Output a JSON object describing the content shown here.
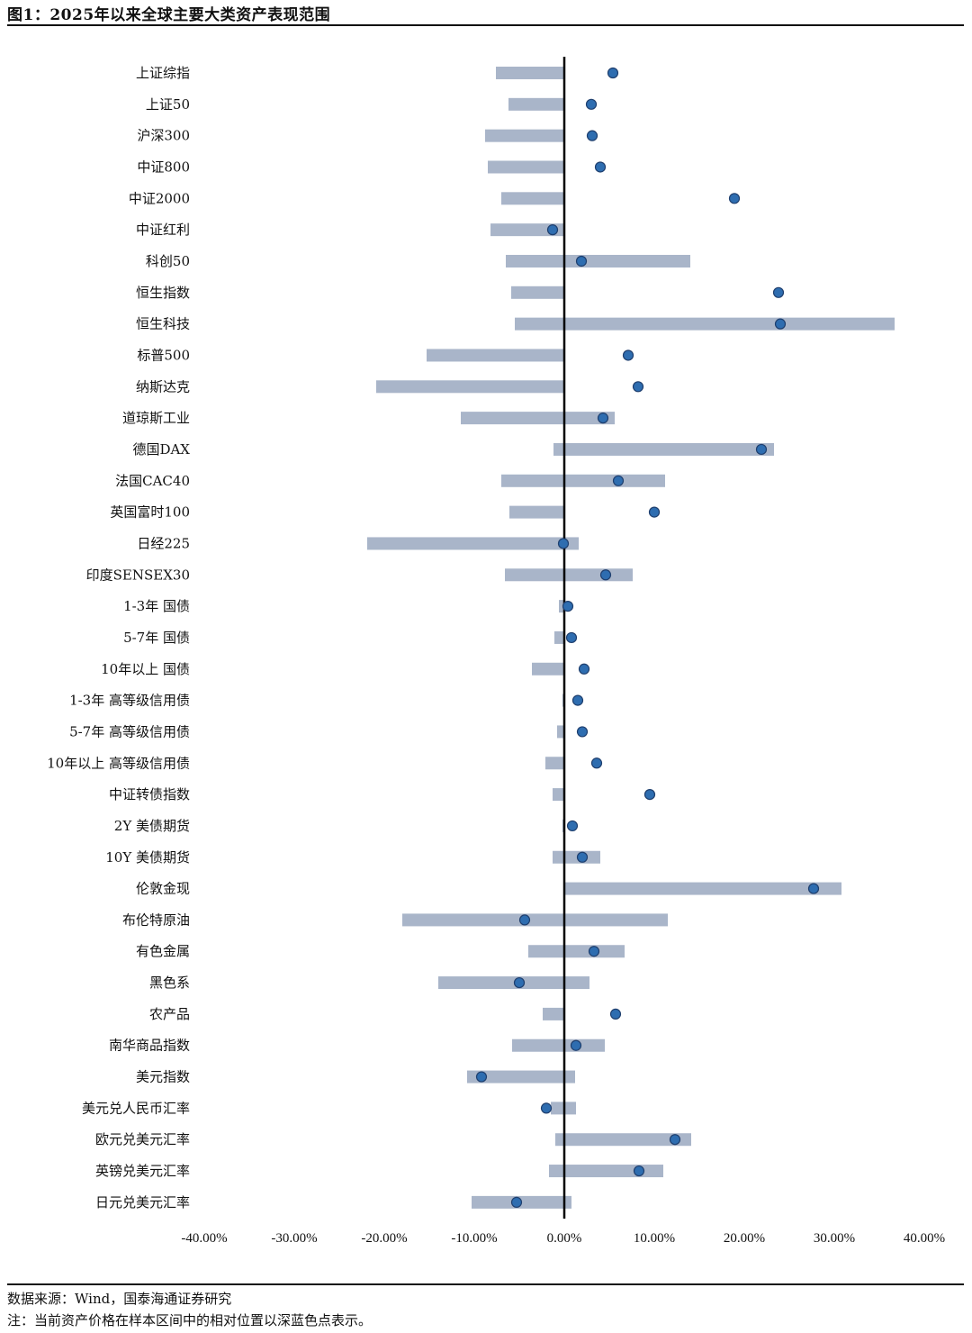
{
  "figure": {
    "title": "图1：2025年以来全球主要大类资产表现范围",
    "source": "数据来源：Wind，国泰海通证券研究",
    "note": "注：当前资产价格在样本区间中的相对位置以深蓝色点表示。"
  },
  "colors": {
    "bar": "#a9b5c9",
    "dot": "#2e6db0",
    "dot_stroke": "#1f3f6e",
    "zero_line": "#000000"
  },
  "chart_data": {
    "type": "bar",
    "orientation": "horizontal-range",
    "xlim": [
      -40,
      40
    ],
    "x_ticks": [
      "-40.00%",
      "-30.00%",
      "-20.00%",
      "-10.00%",
      "0.00%",
      "10.00%",
      "20.00%",
      "30.00%",
      "40.00%"
    ],
    "tick_values": [
      -40,
      -30,
      -20,
      -10,
      0,
      10,
      20,
      30,
      40
    ],
    "categories": [
      "上证综指",
      "上证50",
      "沪深300",
      "中证800",
      "中证2000",
      "中证红利",
      "科创50",
      "恒生指数",
      "恒生科技",
      "标普500",
      "纳斯达克",
      "道琼斯工业",
      "德国DAX",
      "法国CAC40",
      "英国富时100",
      "日经225",
      "印度SENSEX30",
      "1-3年 国债",
      "5-7年 国债",
      "10年以上 国债",
      "1-3年 高等级信用债",
      "5-7年 高等级信用债",
      "10年以上 高等级信用债",
      "中证转债指数",
      "2Y 美债期货",
      "10Y 美债期货",
      "伦敦金现",
      "布伦特原油",
      "有色金属",
      "黑色系",
      "农产品",
      "南华商品指数",
      "美元指数",
      "美元兑人民币汇率",
      "欧元兑美元汇率",
      "英镑兑美元汇率",
      "日元兑美元汇率"
    ],
    "series": [
      {
        "kind": "range-min",
        "values": [
          -7.6,
          -6.2,
          -8.8,
          -8.5,
          -7.0,
          -8.2,
          -6.5,
          -5.9,
          -5.5,
          -15.3,
          -20.9,
          -11.5,
          -1.2,
          -7.0,
          -6.1,
          -21.9,
          -6.6,
          -0.6,
          -1.1,
          -3.6,
          -0.2,
          -0.8,
          -2.1,
          -1.3,
          -0.2,
          -1.3,
          0.0,
          -18.0,
          -4.0,
          -14.0,
          -2.4,
          -5.8,
          -10.8,
          -1.5,
          -1.0,
          -1.7,
          -10.3
        ]
      },
      {
        "kind": "range-max",
        "values": [
          0.0,
          0.0,
          0.0,
          0.0,
          0.0,
          0.0,
          14.0,
          0.0,
          36.7,
          0.0,
          0.0,
          5.6,
          23.3,
          11.2,
          0.0,
          1.6,
          7.6,
          0.0,
          0.0,
          0.0,
          0.0,
          0.0,
          0.0,
          0.0,
          0.0,
          4.0,
          30.8,
          11.5,
          6.7,
          2.8,
          0.0,
          4.5,
          1.2,
          1.3,
          14.1,
          11.0,
          0.8
        ]
      },
      {
        "kind": "current",
        "values": [
          5.4,
          3.0,
          3.1,
          4.0,
          18.9,
          -1.3,
          1.9,
          23.8,
          24.0,
          7.1,
          8.2,
          4.3,
          21.9,
          6.0,
          10.0,
          -0.1,
          4.6,
          0.4,
          0.8,
          2.2,
          1.5,
          2.0,
          3.6,
          9.5,
          0.9,
          2.0,
          27.7,
          -4.4,
          3.3,
          -5.0,
          5.7,
          1.3,
          -9.2,
          -2.0,
          12.3,
          8.3,
          -5.3
        ]
      }
    ]
  }
}
